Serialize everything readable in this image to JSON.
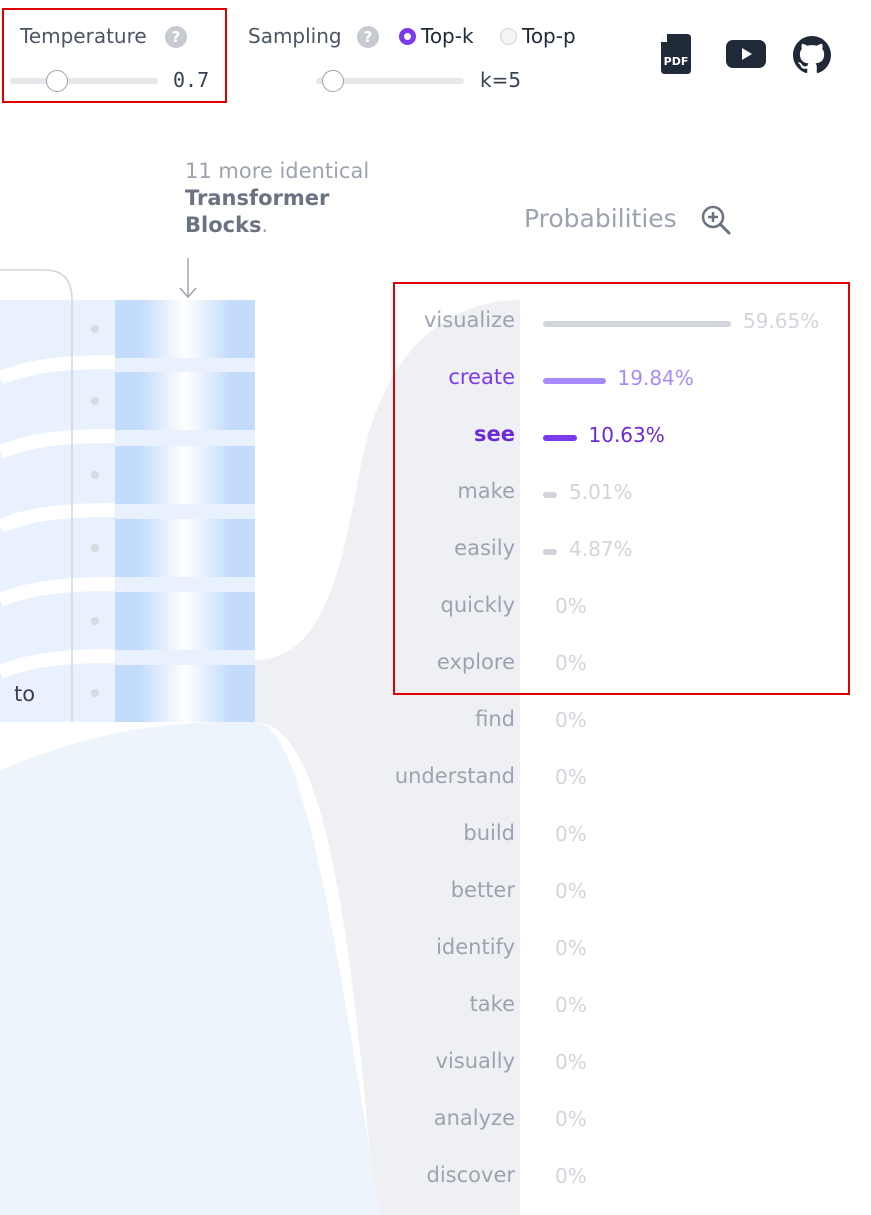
{
  "controls": {
    "temperature": {
      "label": "Temperature",
      "value": "0.7",
      "slider_fraction": 0.3
    },
    "sampling": {
      "label": "Sampling",
      "options": [
        {
          "label": "Top-k",
          "selected": true
        },
        {
          "label": "Top-p",
          "selected": false
        }
      ],
      "k_label": "k=5",
      "slider_fraction": 0.1
    }
  },
  "icons": [
    "pdf-icon",
    "youtube-icon",
    "github-icon"
  ],
  "annotation": {
    "line1": "11 more identical",
    "bold1": "Transformer",
    "bold2": "Blocks",
    "tail": "."
  },
  "input_token": "to",
  "probabilities": {
    "title": "Probabilities",
    "tokens": [
      {
        "word": "visualize",
        "pct": "59.65%",
        "value": 59.65,
        "style": "gray"
      },
      {
        "word": "create",
        "pct": "19.84%",
        "value": 19.84,
        "style": "light-purple"
      },
      {
        "word": "see",
        "pct": "10.63%",
        "value": 10.63,
        "style": "purple"
      },
      {
        "word": "make",
        "pct": "5.01%",
        "value": 5.01,
        "style": "faint"
      },
      {
        "word": "easily",
        "pct": "4.87%",
        "value": 4.87,
        "style": "faint"
      },
      {
        "word": "quickly",
        "pct": "0%",
        "value": 0,
        "style": "none"
      },
      {
        "word": "explore",
        "pct": "0%",
        "value": 0,
        "style": "none"
      },
      {
        "word": "find",
        "pct": "0%",
        "value": 0,
        "style": "none"
      },
      {
        "word": "understand",
        "pct": "0%",
        "value": 0,
        "style": "none"
      },
      {
        "word": "build",
        "pct": "0%",
        "value": 0,
        "style": "none"
      },
      {
        "word": "better",
        "pct": "0%",
        "value": 0,
        "style": "none"
      },
      {
        "word": "identify",
        "pct": "0%",
        "value": 0,
        "style": "none"
      },
      {
        "word": "take",
        "pct": "0%",
        "value": 0,
        "style": "none"
      },
      {
        "word": "visually",
        "pct": "0%",
        "value": 0,
        "style": "none"
      },
      {
        "word": "analyze",
        "pct": "0%",
        "value": 0,
        "style": "none"
      },
      {
        "word": "discover",
        "pct": "0%",
        "value": 0,
        "style": "none"
      }
    ]
  },
  "colors": {
    "accent": "#7c3aed",
    "accent_light": "#a78bfa",
    "flow": "#e8f1fd",
    "block": "#c4dcfb",
    "highlight": "#e00000"
  }
}
